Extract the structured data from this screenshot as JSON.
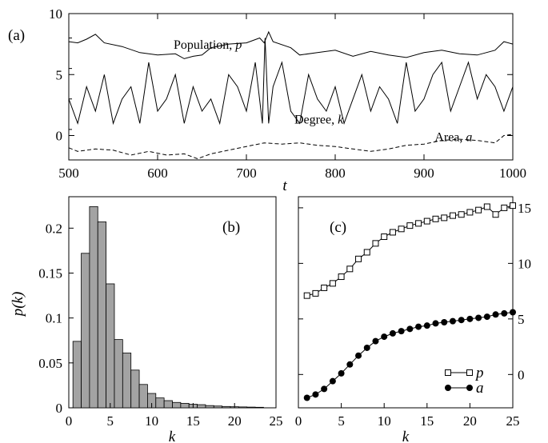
{
  "chart_data": [
    {
      "type": "line",
      "panel_label": "(a)",
      "xlabel": "t",
      "xlim": [
        500,
        1000
      ],
      "ylim": [
        -2,
        10
      ],
      "xticks": [
        500,
        600,
        700,
        800,
        900,
        1000
      ],
      "yticks": [
        0,
        5,
        10
      ],
      "annotations": [
        {
          "text": "Population, ",
          "var": "p",
          "x": 618,
          "y": 7.1
        },
        {
          "text": "Degree, ",
          "var": "k",
          "x": 754,
          "y": 1.0
        },
        {
          "text": "Area, ",
          "var": "a",
          "x": 912,
          "y": -0.45
        }
      ],
      "series": [
        {
          "style": "solid",
          "x": [
            500,
            510,
            520,
            530,
            540,
            560,
            580,
            600,
            620,
            630,
            640,
            650,
            660,
            680,
            700,
            715,
            720,
            725,
            730,
            750,
            760,
            780,
            800,
            820,
            840,
            860,
            880,
            900,
            920,
            940,
            960,
            980,
            990,
            1000
          ],
          "values": [
            7.7,
            7.6,
            7.9,
            8.3,
            7.6,
            7.3,
            6.8,
            6.6,
            6.7,
            6.3,
            6.5,
            6.6,
            7.2,
            7.5,
            7.6,
            8.0,
            7.6,
            8.5,
            7.7,
            7.2,
            6.6,
            6.8,
            7.0,
            6.5,
            6.9,
            6.6,
            6.4,
            6.8,
            7.0,
            6.7,
            6.6,
            7.0,
            7.7,
            7.5
          ]
        },
        {
          "style": "solid",
          "x": [
            500,
            510,
            520,
            530,
            540,
            550,
            560,
            570,
            580,
            590,
            600,
            610,
            620,
            630,
            640,
            650,
            660,
            670,
            680,
            690,
            700,
            710,
            718,
            721,
            725,
            730,
            740,
            750,
            760,
            770,
            780,
            790,
            800,
            810,
            820,
            830,
            840,
            850,
            860,
            870,
            880,
            890,
            900,
            910,
            920,
            930,
            940,
            950,
            960,
            970,
            980,
            990,
            1000
          ],
          "values": [
            3,
            1,
            4,
            2,
            5,
            1,
            3,
            4,
            1,
            6,
            2,
            3,
            5,
            1,
            4,
            2,
            3,
            1,
            5,
            4,
            2,
            6,
            1,
            8,
            1,
            4,
            6,
            2,
            1,
            5,
            3,
            2,
            4,
            1,
            3,
            5,
            2,
            4,
            3,
            1,
            6,
            2,
            3,
            5,
            6,
            2,
            4,
            6,
            3,
            5,
            4,
            2,
            4
          ]
        },
        {
          "style": "dashed",
          "x": [
            500,
            510,
            530,
            550,
            570,
            590,
            610,
            630,
            645,
            660,
            680,
            700,
            720,
            740,
            760,
            780,
            800,
            820,
            840,
            860,
            880,
            900,
            920,
            940,
            960,
            980,
            990,
            1000
          ],
          "values": [
            -1.0,
            -1.3,
            -1.1,
            -1.2,
            -1.6,
            -1.3,
            -1.6,
            -1.5,
            -1.9,
            -1.5,
            -1.2,
            -0.9,
            -0.6,
            -0.7,
            -0.6,
            -0.8,
            -0.9,
            -1.1,
            -1.3,
            -1.1,
            -0.8,
            -0.7,
            -0.4,
            -0.3,
            -0.4,
            -0.6,
            0.0,
            0.1
          ]
        }
      ]
    },
    {
      "type": "bar",
      "panel_label": "(b)",
      "xlabel": "k",
      "ylabel": "p(k)",
      "xlim": [
        0,
        25
      ],
      "ylim": [
        0,
        0.235
      ],
      "xticks": [
        0,
        5,
        10,
        15,
        20,
        25
      ],
      "yticks": [
        0,
        0.05,
        0.1,
        0.15,
        0.2
      ],
      "categories": [
        1,
        2,
        3,
        4,
        5,
        6,
        7,
        8,
        9,
        10,
        11,
        12,
        13,
        14,
        15,
        16,
        17,
        18,
        19,
        20,
        21,
        22,
        23
      ],
      "values": [
        0.074,
        0.172,
        0.224,
        0.207,
        0.138,
        0.076,
        0.061,
        0.042,
        0.026,
        0.016,
        0.011,
        0.008,
        0.006,
        0.005,
        0.004,
        0.0035,
        0.0025,
        0.002,
        0.0015,
        0.0012,
        0.001,
        0.0008,
        0.0006
      ]
    },
    {
      "type": "line",
      "panel_label": "(c)",
      "xlabel": "k",
      "xlim": [
        0,
        25
      ],
      "ylim": [
        -3,
        16
      ],
      "xticks": [
        0,
        5,
        10,
        15,
        20,
        25
      ],
      "yticks": [
        0,
        5,
        10,
        15
      ],
      "legend_position": "bottom-right",
      "series": [
        {
          "name": "p",
          "marker": "open-square",
          "x": [
            1,
            2,
            3,
            4,
            5,
            6,
            7,
            8,
            9,
            10,
            11,
            12,
            13,
            14,
            15,
            16,
            17,
            18,
            19,
            20,
            21,
            22,
            23,
            24,
            25
          ],
          "values": [
            7.1,
            7.3,
            7.8,
            8.2,
            8.8,
            9.5,
            10.4,
            11.0,
            11.8,
            12.4,
            12.8,
            13.1,
            13.4,
            13.6,
            13.8,
            14.0,
            14.1,
            14.3,
            14.4,
            14.6,
            14.8,
            15.1,
            14.4,
            15.0,
            15.2
          ]
        },
        {
          "name": "a",
          "marker": "filled-circle",
          "x": [
            1,
            2,
            3,
            4,
            5,
            6,
            7,
            8,
            9,
            10,
            11,
            12,
            13,
            14,
            15,
            16,
            17,
            18,
            19,
            20,
            21,
            22,
            23,
            24,
            25
          ],
          "values": [
            -2.1,
            -1.8,
            -1.3,
            -0.6,
            0.1,
            0.9,
            1.7,
            2.4,
            3.0,
            3.4,
            3.7,
            3.9,
            4.1,
            4.3,
            4.4,
            4.6,
            4.7,
            4.8,
            4.9,
            5.0,
            5.1,
            5.2,
            5.4,
            5.5,
            5.6
          ]
        }
      ]
    }
  ]
}
